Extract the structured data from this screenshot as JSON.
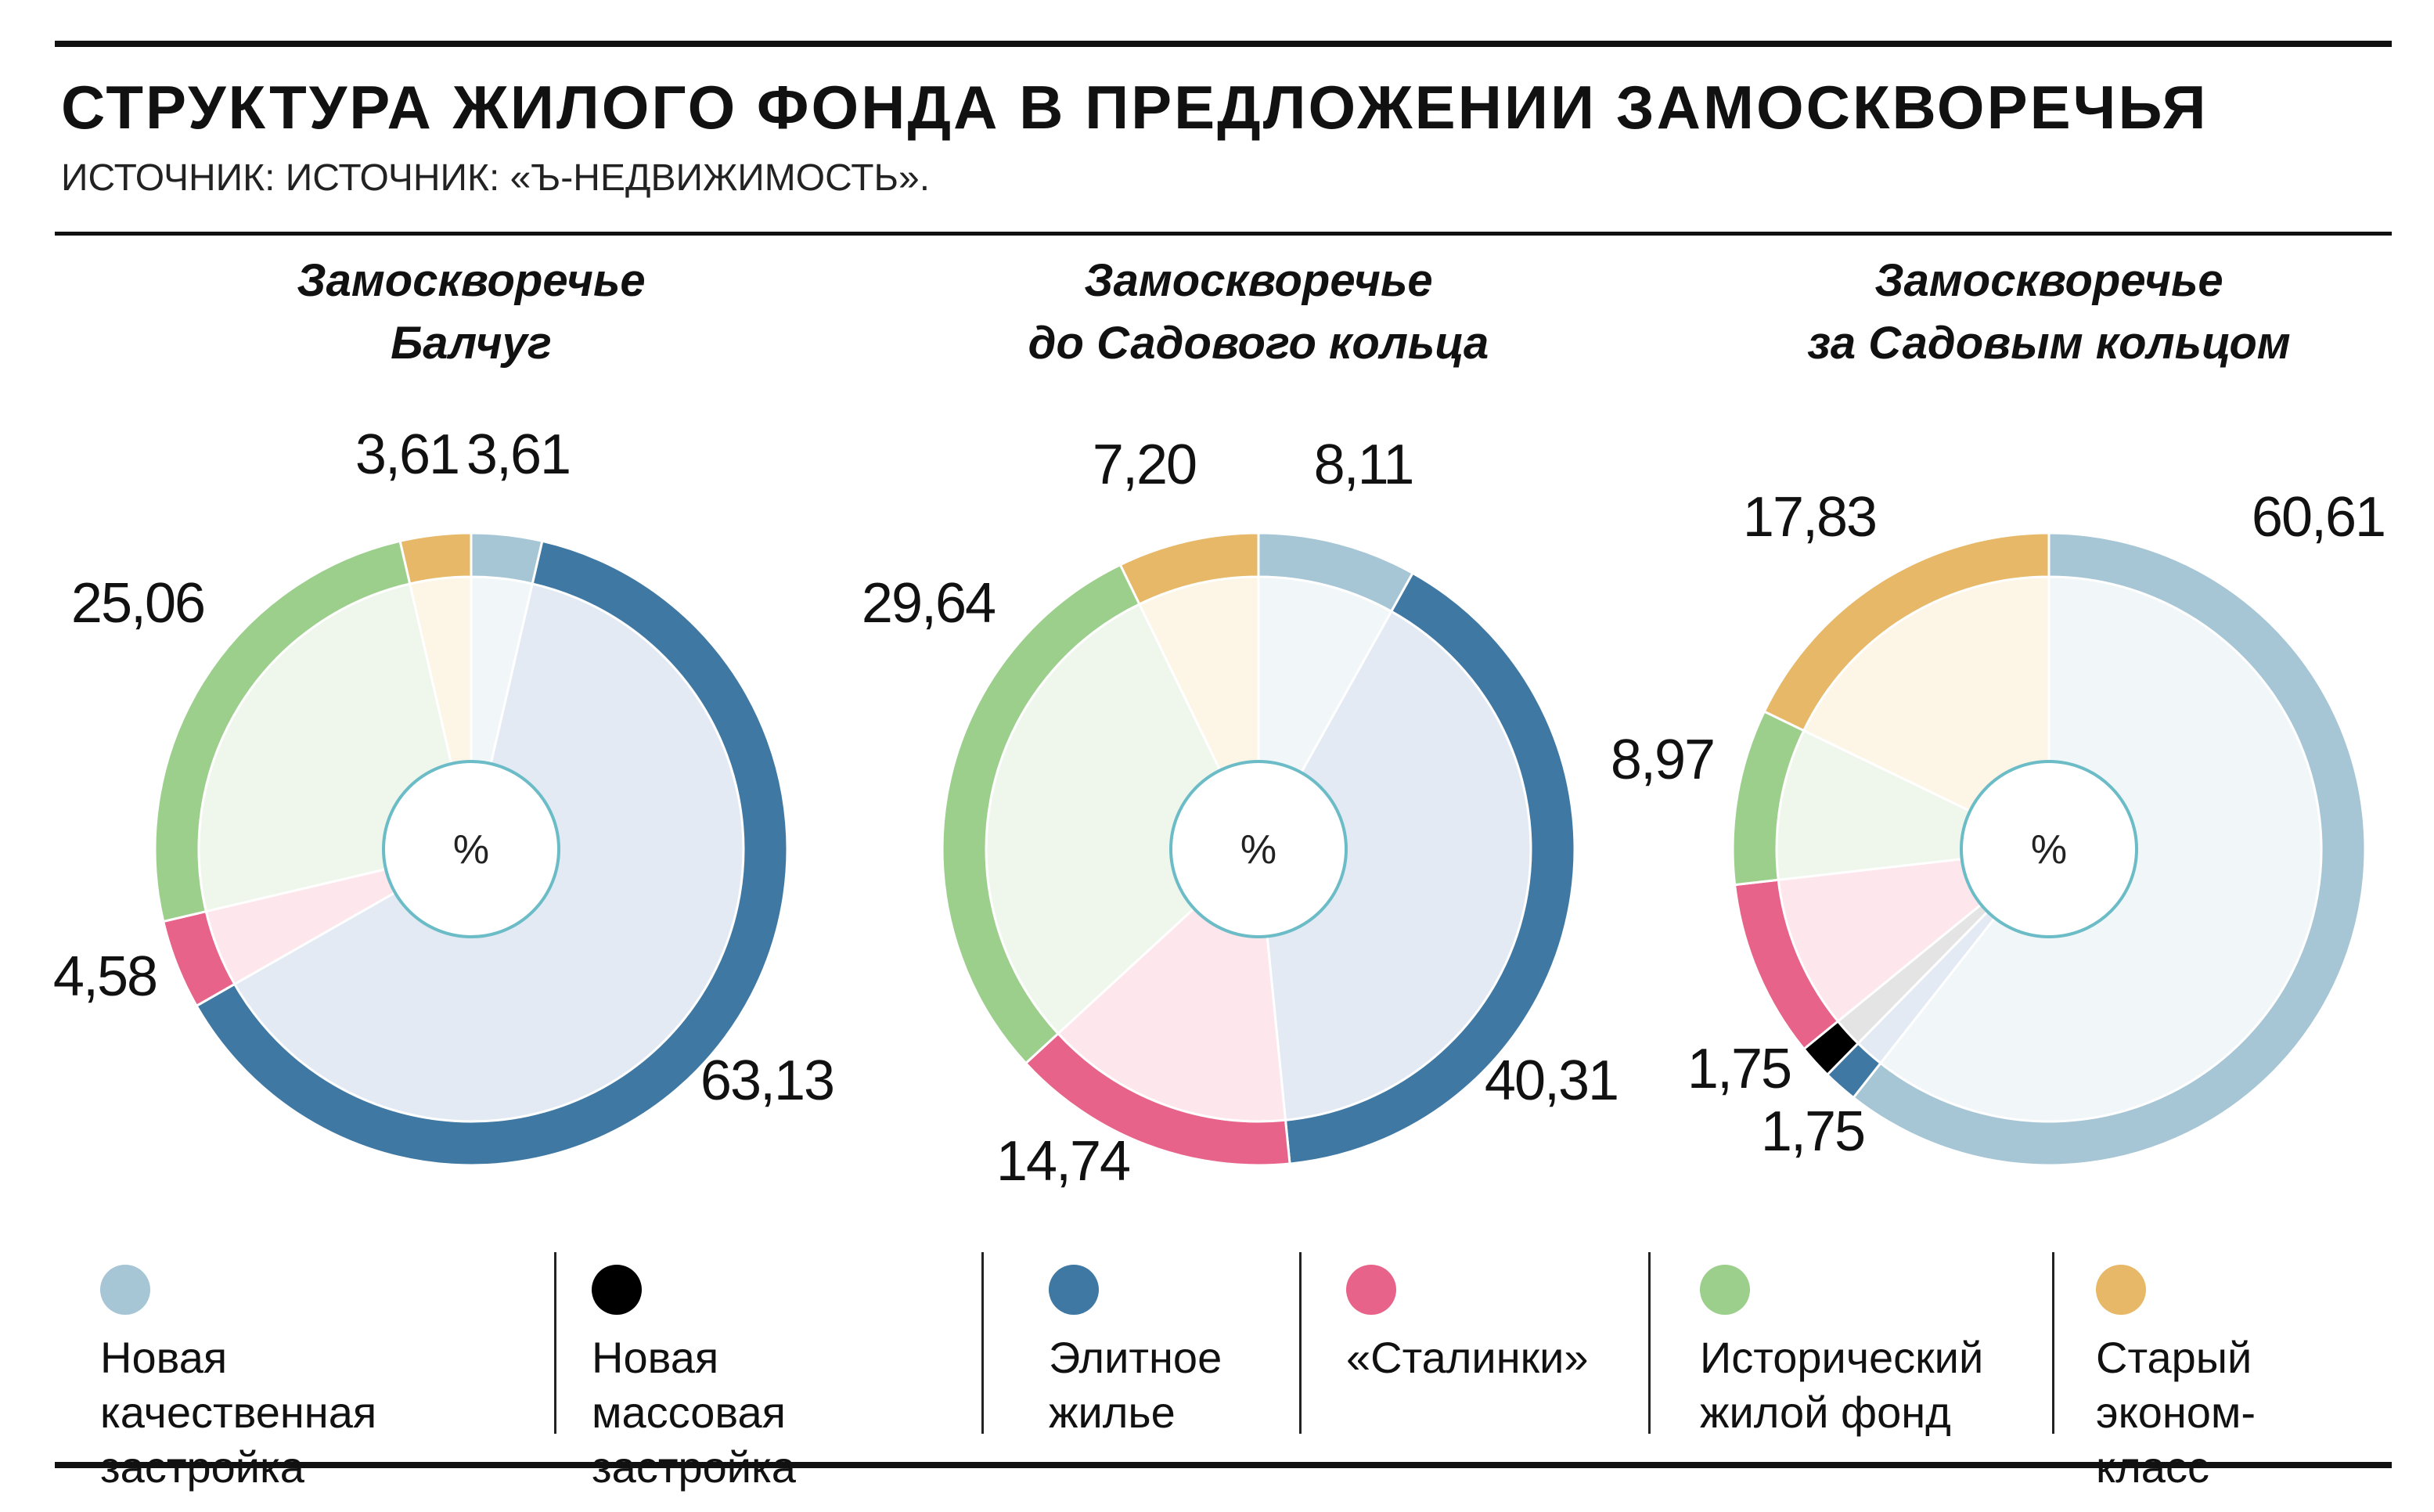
{
  "header": {
    "title": "СТРУКТУРА ЖИЛОГО ФОНДА В ПРЕДЛОЖЕНИИ ЗАМОСКВОРЕЧЬЯ",
    "source": "ИСТОЧНИК: ИСТОЧНИК: «Ъ-НЕДВИЖИМОСТЬ»."
  },
  "center_label": "%",
  "legend": [
    {
      "label": "Новая качественная\nзастройка",
      "color": "#a6c6d5"
    },
    {
      "label": "Новая массовая\nзастройка",
      "color": "#000000"
    },
    {
      "label": "Элитное\nжилье",
      "color": "#3f78a3"
    },
    {
      "label": "«Сталинки»",
      "color": "#e8638a"
    },
    {
      "label": "Исторический\nжилой фонд",
      "color": "#9ccf8c"
    },
    {
      "label": "Старый\nэконом-класс",
      "color": "#e6b867"
    }
  ],
  "chart_data": [
    {
      "type": "pie",
      "title_lines": [
        "Замоскворечье",
        "Балчуг"
      ],
      "categories": [
        "Новая качественная застройка",
        "Новая массовая застройка",
        "Элитное жилье",
        "«Сталинки»",
        "Исторический жилой фонд",
        "Старый эконом-класс"
      ],
      "values": [
        3.61,
        0,
        63.13,
        4.58,
        25.06,
        3.61
      ],
      "labels": [
        "3,61",
        "",
        "63,13",
        "4,58",
        "25,06",
        "3,61"
      ]
    },
    {
      "type": "pie",
      "title_lines": [
        "Замоскворечье",
        "до Садового кольца"
      ],
      "categories": [
        "Новая качественная застройка",
        "Новая массовая застройка",
        "Элитное жилье",
        "«Сталинки»",
        "Исторический жилой фонд",
        "Старый эконом-класс"
      ],
      "values": [
        8.11,
        0,
        40.31,
        14.74,
        29.64,
        7.2
      ],
      "labels": [
        "8,11",
        "",
        "40,31",
        "14,74",
        "29,64",
        "7,20"
      ]
    },
    {
      "type": "pie",
      "title_lines": [
        "Замоскворечье",
        "за Садовым кольцом"
      ],
      "categories": [
        "Новая качественная застройка",
        "Новая массовая застройка",
        "Элитное жилье",
        "«Сталинки»",
        "Исторический жилой фонд",
        "Старый эконом-класс"
      ],
      "values": [
        60.61,
        1.75,
        1.75,
        9.09,
        8.97,
        17.83
      ],
      "labels": [
        "60,61",
        "1,75",
        "1,75",
        "",
        "8,97",
        "17,83"
      ]
    }
  ]
}
